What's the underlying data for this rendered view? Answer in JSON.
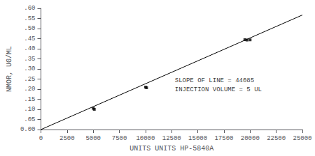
{
  "chart_data": {
    "type": "scatter",
    "xlabel": "UNITS UNITS HP-5840A",
    "ylabel": "NMOR, UG/ML",
    "xlim": [
      0,
      25000
    ],
    "ylim": [
      0,
      0.6
    ],
    "xticks": [
      0,
      2500,
      5000,
      7500,
      10000,
      12500,
      15000,
      17500,
      20000,
      22500,
      25000
    ],
    "yticks": [
      {
        "value": 0,
        "label": "0.00"
      },
      {
        "value": 0.05,
        "label": ".05"
      },
      {
        "value": 0.1,
        "label": ".10"
      },
      {
        "value": 0.15,
        "label": ".15"
      },
      {
        "value": 0.2,
        "label": ".20"
      },
      {
        "value": 0.25,
        "label": ".25"
      },
      {
        "value": 0.3,
        "label": ".30"
      },
      {
        "value": 0.35,
        "label": ".35"
      },
      {
        "value": 0.4,
        "label": ".40"
      },
      {
        "value": 0.45,
        "label": ".45"
      },
      {
        "value": 0.5,
        "label": ".50"
      },
      {
        "value": 0.55,
        "label": ".55"
      },
      {
        "value": 0.6,
        "label": ".60"
      }
    ],
    "series": [
      {
        "type": "line",
        "color": "#000000",
        "x": [
          0,
          25000
        ],
        "values": [
          0,
          0.5670863105
        ]
      },
      {
        "type": "scatter",
        "color": "#000000",
        "marker": "square",
        "x": [
          5000,
          5100,
          10000,
          10100,
          19500,
          19700,
          20000
        ],
        "values": [
          0.105,
          0.1,
          0.21,
          0.207,
          0.445,
          0.443,
          0.444
        ]
      }
    ],
    "annotations": [
      {
        "text": "SLOPE OF LINE = 44085",
        "x": 12800,
        "y": 0.24
      },
      {
        "text": "INJECTION VOLUME = 5 UL",
        "x": 12800,
        "y": 0.195
      }
    ],
    "grid": false
  }
}
